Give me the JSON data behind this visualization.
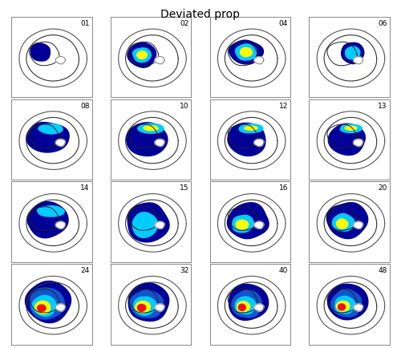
{
  "title": "Deviated prop",
  "title_fontsize": 10,
  "panel_labels": [
    "01",
    "02",
    "04",
    "06",
    "08",
    "10",
    "12",
    "13",
    "14",
    "15",
    "16",
    "20",
    "24",
    "32",
    "40",
    "48"
  ],
  "nrows": 4,
  "ncols": 4,
  "figsize": [
    5.0,
    4.35
  ],
  "dpi": 100,
  "bg_color": "#ffffff",
  "colors": {
    "red": "#ee1111",
    "yellow": "#ffff00",
    "cyan": "#00ccff",
    "blue": "#1155cc",
    "dark_blue": "#000099",
    "navy": "#000066"
  }
}
